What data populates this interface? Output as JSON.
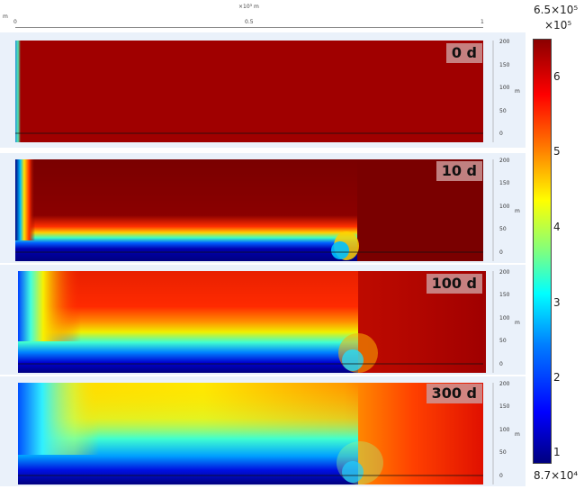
{
  "top_axis": {
    "multiplier": "×10³ m",
    "unit_left": "m",
    "ticks": [
      "0",
      "0.5",
      "1"
    ]
  },
  "panels": [
    {
      "label": "0 d"
    },
    {
      "label": "10 d"
    },
    {
      "label": "100 d"
    },
    {
      "label": "300 d"
    }
  ],
  "y_axis": {
    "ticks": [
      "200",
      "150",
      "100",
      "50",
      "0"
    ],
    "unit": "m"
  },
  "colorbar": {
    "max_label": "6.5×10⁵",
    "exp_label": "×10⁵",
    "min_label": "8.7×10⁴",
    "ticks": [
      "6",
      "5",
      "4",
      "3",
      "2",
      "1"
    ],
    "colors": [
      "#00007f",
      "#0000ff",
      "#007fff",
      "#00ffff",
      "#7fff7f",
      "#ffff00",
      "#ff7f00",
      "#ff0000",
      "#8b0000"
    ]
  }
}
